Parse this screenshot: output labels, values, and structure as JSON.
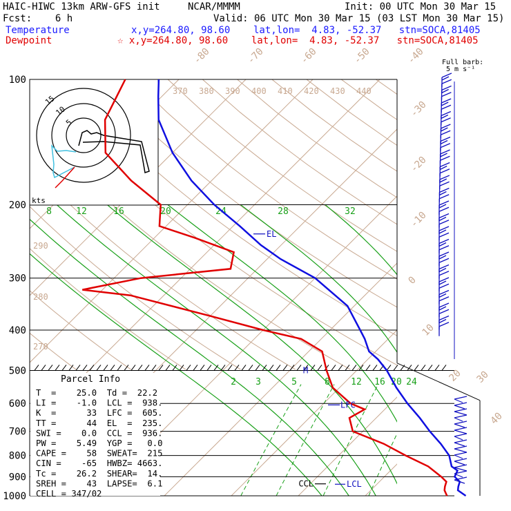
{
  "header": {
    "model": "HAIC-HIWC 13km ARW-GFS init",
    "org": "NCAR/MMMM",
    "init": "Init: 00 UTC Mon 30 Mar 15",
    "fcst": "Fcst:    6 h",
    "valid": "Valid: 06 UTC Mon 30 Mar 15 (03 LST Mon 30 Mar 15)",
    "temp_label": "Temperature",
    "temp_info": "x,y=264.80, 98.60    lat,lon=  4.83, -52.37   stn=SOCA,81405",
    "dew_label": "Dewpoint",
    "dew_info": "☆ x,y=264.80, 98.60    lat,lon=  4.83, -52.37   stn=SOCA,81405",
    "barb_label": "Full barb:",
    "barb_unit": "5 m s⁻¹"
  },
  "chart_data": {
    "type": "skew-t",
    "y_axis": "pressure (hPa), log scale",
    "pressure_ticks": [
      100,
      200,
      300,
      400,
      500,
      600,
      700,
      800,
      900,
      1000
    ],
    "isotherm_labels": [
      "-80",
      "-70",
      "-60",
      "-50",
      "-40",
      "-30",
      "-20",
      "-10",
      "0",
      "10",
      "20",
      "30",
      "40"
    ],
    "theta_labels_upper": [
      "370",
      "380",
      "390",
      "400",
      "410",
      "420",
      "430",
      "440"
    ],
    "theta_labels_left": [
      "290",
      "280",
      "270"
    ],
    "mixing_ratio_labels": [
      "2",
      "3",
      "5",
      "8",
      "12",
      "16",
      "20",
      "24"
    ],
    "theta_e_labels": [
      "8",
      "12",
      "16",
      "20",
      "24",
      "28",
      "32"
    ],
    "temperature_profile": [
      [
        1000,
        25.0
      ],
      [
        970,
        23.0
      ],
      [
        950,
        22.5
      ],
      [
        925,
        22.0
      ],
      [
        900,
        20.5
      ],
      [
        870,
        20.0
      ],
      [
        850,
        18.5
      ],
      [
        800,
        16.5
      ],
      [
        750,
        13.5
      ],
      [
        700,
        10.0
      ],
      [
        650,
        6.5
      ],
      [
        600,
        2.5
      ],
      [
        550,
        -1.5
      ],
      [
        500,
        -5.5
      ],
      [
        470,
        -8.5
      ],
      [
        450,
        -11.0
      ],
      [
        420,
        -13.5
      ],
      [
        400,
        -15.5
      ],
      [
        350,
        -21.0
      ],
      [
        300,
        -30.0
      ],
      [
        270,
        -38.0
      ],
      [
        250,
        -43.0
      ],
      [
        225,
        -49.0
      ],
      [
        200,
        -56.0
      ],
      [
        175,
        -63.0
      ],
      [
        150,
        -70.0
      ],
      [
        125,
        -77.0
      ],
      [
        110,
        -80.5
      ],
      [
        100,
        -83.0
      ]
    ],
    "dewpoint_profile": [
      [
        1000,
        22.2
      ],
      [
        970,
        21.0
      ],
      [
        950,
        20.5
      ],
      [
        925,
        20.0
      ],
      [
        900,
        18.5
      ],
      [
        850,
        15.0
      ],
      [
        800,
        10.0
      ],
      [
        750,
        5.0
      ],
      [
        700,
        -1.5
      ],
      [
        650,
        -4.0
      ],
      [
        620,
        -3.0
      ],
      [
        600,
        -6.0
      ],
      [
        550,
        -11.0
      ],
      [
        500,
        -14.5
      ],
      [
        450,
        -18.0
      ],
      [
        420,
        -23.0
      ],
      [
        400,
        -30.0
      ],
      [
        370,
        -40.0
      ],
      [
        330,
        -55.0
      ],
      [
        320,
        -63.0
      ],
      [
        300,
        -56.0
      ],
      [
        285,
        -44.0
      ],
      [
        260,
        -46.0
      ],
      [
        240,
        -54.0
      ],
      [
        225,
        -61.0
      ],
      [
        200,
        -64.0
      ],
      [
        175,
        -72.0
      ],
      [
        150,
        -80.0
      ],
      [
        125,
        -85.0
      ],
      [
        100,
        -88.0
      ]
    ],
    "annotations": [
      {
        "label": "EL",
        "pressure": 235
      },
      {
        "label": "LFC",
        "pressure": 605
      },
      {
        "label": "CCL",
        "pressure": 936
      },
      {
        "label": "LCL",
        "pressure": 938
      },
      {
        "label": "M",
        "pressure": 500
      }
    ],
    "hodograph_label": "kts",
    "hodograph_ring_labels": [
      "5",
      "10",
      "15"
    ]
  },
  "parcel_info": {
    "title": "Parcel Info",
    "rows": [
      "T  =    25.0  Td =  22.2",
      "LI =    -1.0  LCL =  938.",
      "K  =      33  LFC =  605.",
      "TT =      44  EL  =  235.",
      "SWI =    0.0  CCL =  936.",
      "PW =    5.49  YGP =   0.0",
      "CAPE =    58  SWEAT=  215",
      "CIN =    -65  HWBZ= 4663.",
      "Tc =    26.2  SHEAR=  14.",
      "SREH =    43  LAPSE=  6.1",
      "CELL = 347/02"
    ]
  },
  "colors": {
    "temperature": "#1010e0",
    "dewpoint": "#e00000",
    "isotherm": "#c8a890",
    "moist_adiabat": "#18a018",
    "barbs": "#1010c0",
    "hodo_cyan": "#40c0e0"
  }
}
